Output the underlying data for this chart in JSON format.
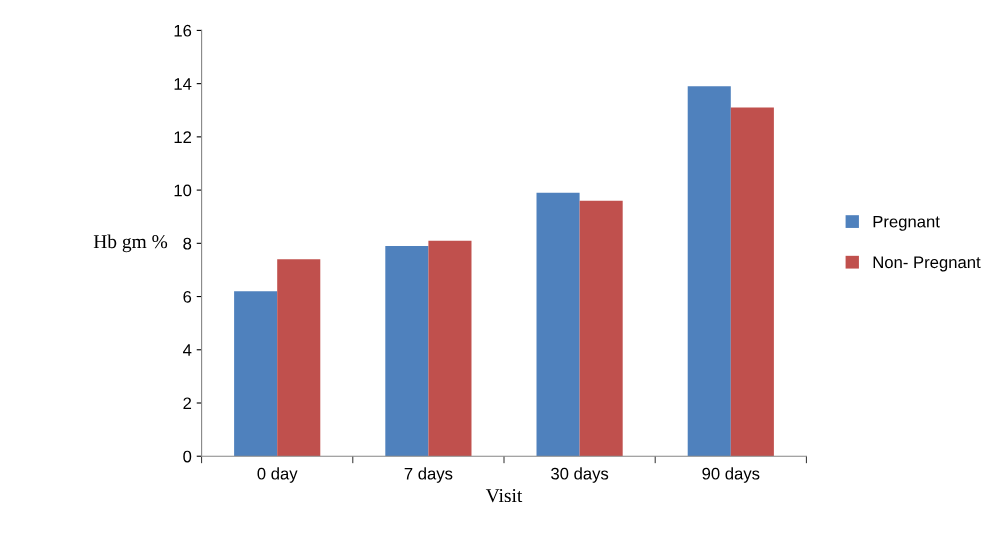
{
  "chart_data": {
    "type": "bar",
    "xlabel": "Visit",
    "ylabel": "Hb gm %",
    "categories": [
      "0 day",
      "7 days",
      "30 days",
      "90 days"
    ],
    "series": [
      {
        "name": "Pregnant",
        "color": "#4f81bd",
        "values": [
          6.2,
          7.9,
          9.9,
          13.9
        ]
      },
      {
        "name": "Non- Pregnant",
        "color": "#c0504d",
        "values": [
          7.4,
          8.1,
          9.6,
          13.1
        ]
      }
    ],
    "ylim": [
      0,
      16
    ],
    "yticks": [
      0,
      2,
      4,
      6,
      8,
      10,
      12,
      14,
      16
    ],
    "grid": false,
    "legend": "right"
  }
}
